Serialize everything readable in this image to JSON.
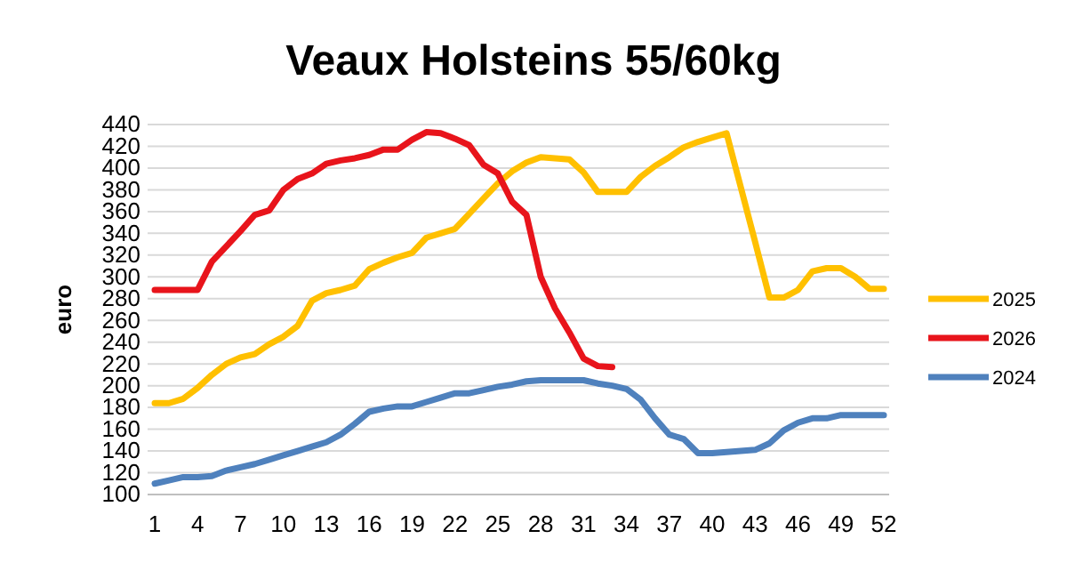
{
  "chart_data": {
    "type": "line",
    "title": "Veaux Holsteins 55/60kg",
    "ylabel": "euro",
    "categories": [
      "1",
      null,
      null,
      "4",
      null,
      null,
      "7",
      null,
      null,
      "10",
      null,
      null,
      "13",
      null,
      null,
      "16",
      null,
      null,
      "19",
      null,
      null,
      "22",
      null,
      null,
      "25",
      null,
      null,
      "28",
      null,
      null,
      "31",
      null,
      null,
      "34",
      null,
      null,
      "37",
      null,
      null,
      "40",
      null,
      null,
      "43",
      null,
      null,
      "46",
      null,
      null,
      "49",
      null,
      null,
      "52"
    ],
    "series": [
      {
        "name": "2025",
        "color": "#ffc000",
        "values": [
          184,
          184,
          188,
          198,
          210,
          220,
          226,
          229,
          238,
          245,
          255,
          278,
          285,
          288,
          292,
          307,
          313,
          318,
          322,
          336,
          340,
          344,
          358,
          372,
          386,
          397,
          405,
          410,
          409,
          408,
          396,
          378,
          378,
          378,
          392,
          402,
          410,
          419,
          424,
          428,
          432,
          382,
          332,
          281,
          281,
          288,
          305,
          308,
          308,
          300,
          289,
          289
        ]
      },
      {
        "name": "2026",
        "color": "#e8141b",
        "values": [
          288,
          288,
          288,
          288,
          314,
          328,
          342,
          357,
          361,
          380,
          390,
          395,
          404,
          407,
          409,
          412,
          417,
          417,
          426,
          433,
          432,
          427,
          421,
          403,
          395,
          369,
          357,
          300,
          271,
          249,
          225,
          218,
          217,
          null,
          null,
          null,
          null,
          null,
          null,
          null,
          null,
          null,
          null,
          null,
          null,
          null,
          null,
          null,
          null,
          null,
          null,
          null
        ]
      },
      {
        "name": "2024",
        "color": "#4f81bd",
        "values": [
          110,
          113,
          116,
          116,
          117,
          122,
          125,
          128,
          132,
          136,
          140,
          144,
          148,
          155,
          165,
          176,
          179,
          181,
          181,
          185,
          189,
          193,
          193,
          196,
          199,
          201,
          204,
          205,
          205,
          205,
          205,
          202,
          200,
          197,
          187,
          170,
          155,
          151,
          138,
          138,
          139,
          140,
          141,
          147,
          159,
          166,
          170,
          170,
          173,
          173,
          173,
          173
        ]
      }
    ],
    "ylim": [
      100,
      440
    ],
    "yticks": [
      100,
      120,
      140,
      160,
      180,
      200,
      220,
      240,
      260,
      280,
      300,
      320,
      340,
      360,
      380,
      400,
      420,
      440
    ],
    "grid": "y",
    "legend": "right",
    "marker": "none",
    "line_style": "solid"
  }
}
